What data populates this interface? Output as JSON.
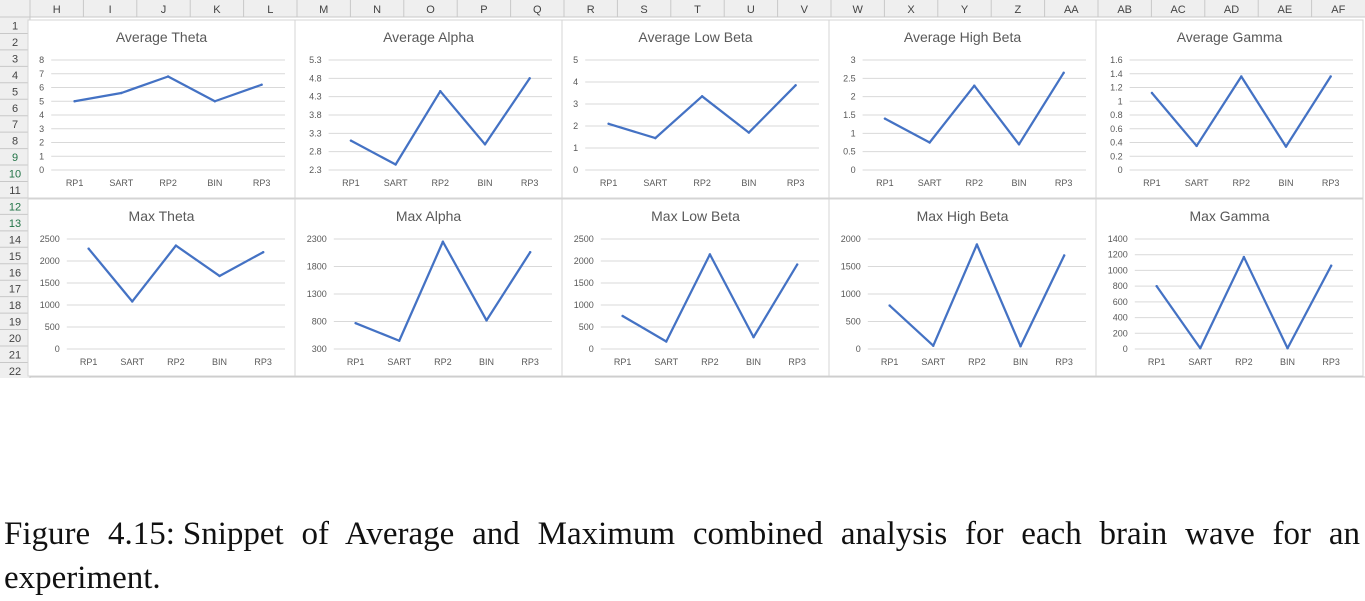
{
  "spreadsheet": {
    "column_headers": [
      "H",
      "I",
      "J",
      "K",
      "L",
      "M",
      "N",
      "O",
      "P",
      "Q",
      "R",
      "S",
      "T",
      "U",
      "V",
      "W",
      "X",
      "Y",
      "Z",
      "AA",
      "AB",
      "AC",
      "AD",
      "AE",
      "AF"
    ],
    "row_headers": [
      "1",
      "2",
      "3",
      "4",
      "5",
      "6",
      "7",
      "8",
      "9",
      "10",
      "11",
      "12",
      "13",
      "14",
      "15",
      "16",
      "17",
      "18",
      "19",
      "20",
      "21",
      "22"
    ],
    "colors": {
      "line": "#4472c4",
      "grid": "#d9d9d9",
      "header_bg": "#efefef",
      "header_text": "#444444",
      "selected_header_text": "#217346"
    }
  },
  "chart_data": [
    {
      "type": "line",
      "title": "Average Theta",
      "categories": [
        "RP1",
        "SART",
        "RP2",
        "BIN",
        "RP3"
      ],
      "values": [
        5.0,
        5.6,
        6.8,
        5.0,
        6.2
      ],
      "yticks": [
        "0",
        "1",
        "2",
        "3",
        "4",
        "5",
        "6",
        "7",
        "8"
      ],
      "ylim": [
        0,
        8
      ],
      "grid": true
    },
    {
      "type": "line",
      "title": "Average Alpha",
      "categories": [
        "RP1",
        "SART",
        "RP2",
        "BIN",
        "RP3"
      ],
      "values": [
        3.1,
        2.45,
        4.45,
        3.0,
        4.8
      ],
      "yticks": [
        "2.3",
        "2.8",
        "3.3",
        "3.8",
        "4.3",
        "4.8",
        "5.3"
      ],
      "ylim": [
        2.3,
        5.3
      ],
      "grid": true
    },
    {
      "type": "line",
      "title": "Average  Low Beta",
      "categories": [
        "RP1",
        "SART",
        "RP2",
        "BIN",
        "RP3"
      ],
      "values": [
        2.1,
        1.45,
        3.35,
        1.7,
        3.85
      ],
      "yticks": [
        "0",
        "1",
        "2",
        "3",
        "4",
        "5"
      ],
      "ylim": [
        0,
        5
      ],
      "grid": true
    },
    {
      "type": "line",
      "title": "Average High Beta",
      "categories": [
        "RP1",
        "SART",
        "RP2",
        "BIN",
        "RP3"
      ],
      "values": [
        1.4,
        0.75,
        2.3,
        0.7,
        2.65
      ],
      "yticks": [
        "0",
        "0.5",
        "1",
        "1.5",
        "2",
        "2.5",
        "3"
      ],
      "ylim": [
        0,
        3
      ],
      "grid": true
    },
    {
      "type": "line",
      "title": "Average Gamma",
      "categories": [
        "RP1",
        "SART",
        "RP2",
        "BIN",
        "RP3"
      ],
      "values": [
        1.12,
        0.35,
        1.36,
        0.34,
        1.36
      ],
      "yticks": [
        "0",
        "0.2",
        "0.4",
        "0.6",
        "0.8",
        "1",
        "1.2",
        "1.4",
        "1.6"
      ],
      "ylim": [
        0,
        1.6
      ],
      "grid": true
    },
    {
      "type": "line",
      "title": "Max Theta",
      "categories": [
        "RP1",
        "SART",
        "RP2",
        "BIN",
        "RP3"
      ],
      "values": [
        2280,
        1080,
        2350,
        1660,
        2200
      ],
      "yticks": [
        "0",
        "500",
        "1000",
        "1500",
        "2000",
        "2500"
      ],
      "ylim": [
        0,
        2500
      ],
      "grid": true
    },
    {
      "type": "line",
      "title": "Max Alpha",
      "categories": [
        "RP1",
        "SART",
        "RP2",
        "BIN",
        "RP3"
      ],
      "values": [
        770,
        450,
        2250,
        820,
        2060
      ],
      "yticks": [
        "300",
        "800",
        "1300",
        "1800",
        "2300"
      ],
      "ylim": [
        300,
        2300
      ],
      "grid": true
    },
    {
      "type": "line",
      "title": "Max Low Beta",
      "categories": [
        "RP1",
        "SART",
        "RP2",
        "BIN",
        "RP3"
      ],
      "values": [
        750,
        170,
        2150,
        270,
        1920
      ],
      "yticks": [
        "0",
        "500",
        "1000",
        "1500",
        "2000",
        "2500"
      ],
      "ylim": [
        0,
        2500
      ],
      "grid": true
    },
    {
      "type": "line",
      "title": "Max High Beta",
      "categories": [
        "RP1",
        "SART",
        "RP2",
        "BIN",
        "RP3"
      ],
      "values": [
        790,
        60,
        1900,
        50,
        1700
      ],
      "yticks": [
        "0",
        "500",
        "1000",
        "1500",
        "2000"
      ],
      "ylim": [
        0,
        2000
      ],
      "grid": true
    },
    {
      "type": "line",
      "title": "Max Gamma",
      "categories": [
        "RP1",
        "SART",
        "RP2",
        "BIN",
        "RP3"
      ],
      "values": [
        800,
        10,
        1170,
        10,
        1060
      ],
      "yticks": [
        "0",
        "200",
        "400",
        "600",
        "800",
        "1000",
        "1200",
        "1400"
      ],
      "ylim": [
        0,
        1400
      ],
      "grid": true
    }
  ],
  "caption": {
    "label": "Figure 4.15:",
    "text": "Snippet of Average and Maximum combined analysis for each brain wave for an experiment."
  }
}
